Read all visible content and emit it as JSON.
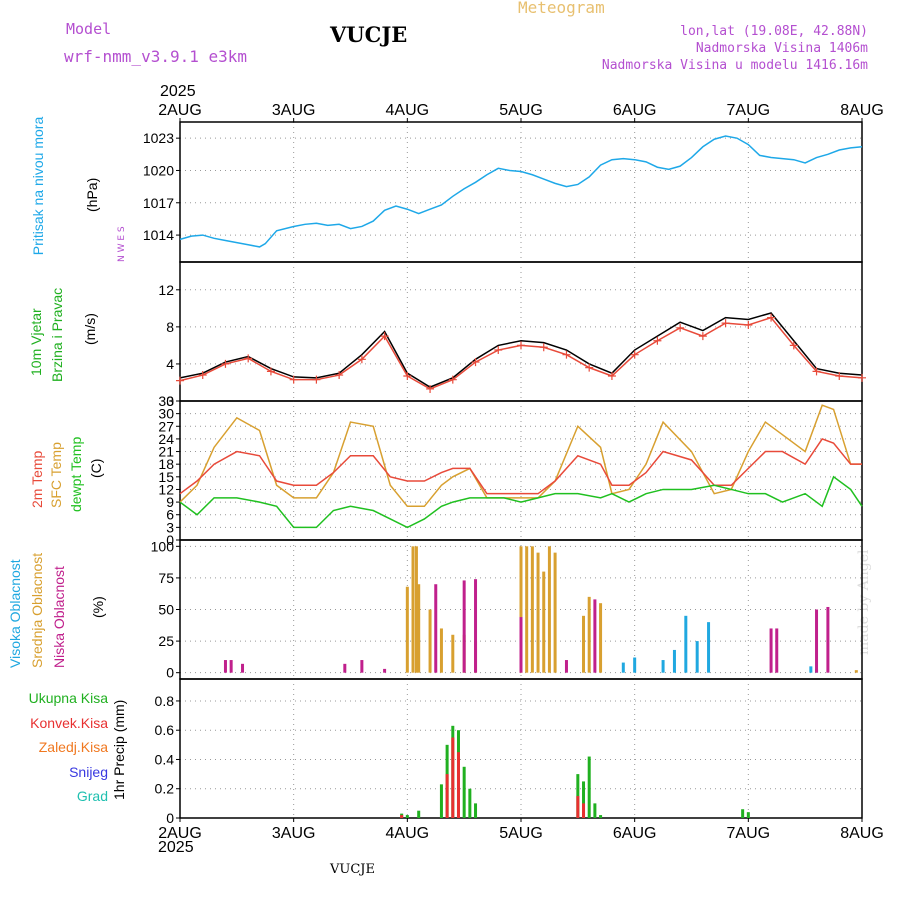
{
  "header": {
    "model_label": "Model",
    "model_name": "wrf-nmm_v3.9.1  e3km",
    "station": "VUCJE",
    "meteogram": "Meteogram",
    "lonlat": "lon,lat (19.08E, 42.88N)",
    "elevation": "Nadmorska Visina 1406m",
    "model_elevation": "Nadmorska Visina u modelu 1416.16m",
    "year_top": "2025",
    "year_bottom": "2025",
    "footer": "VUCJE",
    "credit": "made by Angel"
  },
  "colors": {
    "pressure": "#1ea8e8",
    "t2m": "#e84a3a",
    "sfc": "#d8a030",
    "dew": "#20c020",
    "high_cloud": "#20a8e0",
    "mid_cloud": "#d8a030",
    "low_cloud": "#c0208c",
    "precip_total": "#20b020",
    "precip_conv": "#e83030",
    "precip_strat": "#f07820",
    "snow": "#3838e0",
    "graupel": "#20c0b0"
  },
  "chart_data": {
    "x_ticks": [
      "2AUG",
      "3AUG",
      "4AUG",
      "5AUG",
      "6AUG",
      "7AUG",
      "8AUG"
    ],
    "panels": [
      {
        "type": "line",
        "ylabel": "(hPa)",
        "legend": [
          "Pritisak na nivou mora"
        ],
        "ylim": [
          1011.5,
          1024.5
        ],
        "yticks": [
          1014,
          1017,
          1020,
          1023
        ],
        "series": [
          {
            "name": "Pritisak na nivou mora",
            "x": [
              0,
              0.1,
              0.2,
              0.3,
              0.4,
              0.5,
              0.6,
              0.7,
              0.75,
              0.85,
              1.0,
              1.1,
              1.2,
              1.3,
              1.4,
              1.5,
              1.6,
              1.7,
              1.8,
              1.9,
              2.0,
              2.1,
              2.2,
              2.3,
              2.4,
              2.5,
              2.6,
              2.7,
              2.8,
              2.9,
              3.0,
              3.1,
              3.2,
              3.3,
              3.4,
              3.5,
              3.6,
              3.7,
              3.8,
              3.9,
              4.0,
              4.1,
              4.2,
              4.3,
              4.4,
              4.5,
              4.6,
              4.7,
              4.8,
              4.9,
              5.0,
              5.1,
              5.2,
              5.3,
              5.4,
              5.5,
              5.6,
              5.7,
              5.8,
              5.9,
              6.0
            ],
            "y": [
              1013.6,
              1013.9,
              1014.0,
              1013.7,
              1013.5,
              1013.3,
              1013.1,
              1012.9,
              1013.2,
              1014.4,
              1014.8,
              1015.0,
              1015.1,
              1014.9,
              1015.0,
              1014.6,
              1014.8,
              1015.3,
              1016.3,
              1016.7,
              1016.4,
              1016.0,
              1016.4,
              1016.8,
              1017.6,
              1018.3,
              1018.9,
              1019.6,
              1020.2,
              1020.0,
              1019.9,
              1019.6,
              1019.2,
              1018.8,
              1018.5,
              1018.7,
              1019.4,
              1020.5,
              1021.0,
              1021.1,
              1021.0,
              1020.8,
              1020.3,
              1020.1,
              1020.4,
              1021.2,
              1022.2,
              1022.9,
              1023.2,
              1023.0,
              1022.4,
              1021.4,
              1021.2,
              1021.1,
              1021.0,
              1020.7,
              1021.2,
              1021.5,
              1021.9,
              1022.1,
              1022.2
            ]
          }
        ]
      },
      {
        "type": "line",
        "ylabel": "(m/s)",
        "legend": [
          "10m Vjetar",
          "Brzina i Pravac"
        ],
        "compass": "N W E S",
        "ylim": [
          0,
          15
        ],
        "yticks": [
          0,
          4,
          8,
          12
        ],
        "series": [
          {
            "name": "Brzina i Pravac",
            "x": [
              0,
              0.2,
              0.4,
              0.6,
              0.8,
              1.0,
              1.2,
              1.4,
              1.6,
              1.8,
              2.0,
              2.2,
              2.4,
              2.6,
              2.8,
              3.0,
              3.2,
              3.4,
              3.6,
              3.8,
              4.0,
              4.2,
              4.4,
              4.6,
              4.8,
              5.0,
              5.2,
              5.4,
              5.6,
              5.8,
              6.0
            ],
            "y": [
              2.5,
              3.0,
              4.2,
              4.8,
              3.5,
              2.6,
              2.5,
              3.0,
              5.0,
              7.5,
              3.0,
              1.5,
              2.5,
              4.5,
              6.0,
              6.5,
              6.3,
              5.5,
              4.0,
              3.0,
              5.5,
              7.0,
              8.5,
              7.6,
              9.0,
              8.8,
              9.5,
              6.5,
              3.5,
              3.0,
              2.8
            ]
          },
          {
            "name": "10m Vjetar",
            "x": [
              0,
              0.2,
              0.4,
              0.6,
              0.8,
              1.0,
              1.2,
              1.4,
              1.6,
              1.8,
              2.0,
              2.2,
              2.4,
              2.6,
              2.8,
              3.0,
              3.2,
              3.4,
              3.6,
              3.8,
              4.0,
              4.2,
              4.4,
              4.6,
              4.8,
              5.0,
              5.2,
              5.4,
              5.6,
              5.8,
              6.0
            ],
            "y": [
              2.2,
              2.8,
              4.0,
              4.6,
              3.2,
              2.3,
              2.3,
              2.8,
              4.5,
              7.0,
              2.7,
              1.3,
              2.3,
              4.2,
              5.5,
              6.0,
              5.8,
              5.0,
              3.6,
              2.7,
              5.0,
              6.5,
              7.9,
              7.0,
              8.4,
              8.2,
              9.0,
              6.0,
              3.2,
              2.7,
              2.5
            ]
          }
        ]
      },
      {
        "type": "line",
        "ylabel": "(C)",
        "legend": [
          "2m Temp",
          "SFC Temp",
          "dewpt Temp"
        ],
        "ylim": [
          0,
          33
        ],
        "yticks": [
          0,
          3,
          6,
          9,
          12,
          15,
          18,
          21,
          24,
          27,
          30,
          33
        ],
        "series": [
          {
            "name": "SFC Temp",
            "x": [
              0,
              0.15,
              0.3,
              0.5,
              0.7,
              0.85,
              1.0,
              1.2,
              1.35,
              1.5,
              1.7,
              1.85,
              2.0,
              2.15,
              2.3,
              2.4,
              2.55,
              2.7,
              2.85,
              3.0,
              3.15,
              3.3,
              3.5,
              3.7,
              3.8,
              3.95,
              4.1,
              4.25,
              4.5,
              4.7,
              4.85,
              5.0,
              5.15,
              5.3,
              5.5,
              5.65,
              5.75,
              5.9,
              6.0
            ],
            "y": [
              9,
              13,
              22,
              29,
              26,
              13,
              10,
              10,
              16,
              28,
              27,
              13,
              8,
              8,
              13,
              15,
              17,
              10,
              10,
              10,
              10,
              14,
              27,
              22,
              11,
              12,
              18,
              28,
              21,
              11,
              12,
              21,
              28,
              25,
              21,
              32,
              31,
              18,
              18
            ]
          },
          {
            "name": "2m Temp",
            "x": [
              0,
              0.15,
              0.3,
              0.5,
              0.7,
              0.85,
              1.0,
              1.2,
              1.35,
              1.5,
              1.7,
              1.85,
              2.0,
              2.15,
              2.3,
              2.4,
              2.55,
              2.7,
              2.85,
              3.0,
              3.15,
              3.3,
              3.5,
              3.7,
              3.8,
              3.95,
              4.1,
              4.25,
              4.5,
              4.7,
              4.85,
              5.0,
              5.15,
              5.3,
              5.5,
              5.65,
              5.75,
              5.9,
              6.0
            ],
            "y": [
              11,
              14,
              18,
              21,
              20,
              14,
              13,
              13,
              16,
              20,
              20,
              15,
              14,
              14,
              16,
              17,
              17,
              11,
              11,
              11,
              11,
              14,
              20,
              18,
              13,
              13,
              16,
              21,
              19,
              13,
              13,
              17,
              21,
              21,
              18,
              24,
              23,
              18,
              18
            ]
          },
          {
            "name": "dewpt Temp",
            "x": [
              0,
              0.15,
              0.3,
              0.5,
              0.7,
              0.85,
              1.0,
              1.2,
              1.35,
              1.5,
              1.7,
              1.85,
              2.0,
              2.15,
              2.3,
              2.4,
              2.55,
              2.7,
              2.85,
              3.0,
              3.15,
              3.3,
              3.5,
              3.7,
              3.8,
              3.95,
              4.1,
              4.25,
              4.5,
              4.7,
              4.85,
              5.0,
              5.15,
              5.3,
              5.5,
              5.65,
              5.75,
              5.9,
              6.0
            ],
            "y": [
              9,
              6,
              10,
              10,
              9,
              8,
              3,
              3,
              7,
              8,
              7,
              5,
              3,
              5,
              8,
              9,
              10,
              10,
              10,
              9,
              10,
              11,
              11,
              10,
              11,
              9,
              11,
              12,
              12,
              13,
              12,
              11,
              11,
              9,
              11,
              8,
              15,
              12,
              8
            ]
          }
        ]
      },
      {
        "type": "bar",
        "ylabel": "(%)",
        "legend": [
          "Visoka Oblacnost",
          "Srednja Oblacnost",
          "Niska Oblacnost"
        ],
        "ylim": [
          -5,
          105
        ],
        "yticks": [
          0,
          25,
          50,
          75,
          100
        ],
        "series": [
          {
            "name": "Visoka Oblacnost",
            "x": [
              3.9,
              4.0,
              4.25,
              4.35,
              4.45,
              4.55,
              4.65,
              5.55,
              5.6
            ],
            "y": [
              8,
              12,
              10,
              18,
              45,
              25,
              40,
              5,
              3
            ]
          },
          {
            "name": "Srednja Oblacnost",
            "x": [
              2.0,
              2.05,
              2.08,
              2.1,
              2.2,
              2.3,
              2.4,
              2.5,
              2.6,
              3.0,
              3.05,
              3.1,
              3.15,
              3.2,
              3.25,
              3.3,
              3.55,
              3.6,
              3.7,
              5.95
            ],
            "y": [
              68,
              100,
              100,
              70,
              50,
              35,
              30,
              30,
              25,
              100,
              100,
              100,
              95,
              80,
              100,
              95,
              45,
              60,
              55,
              2
            ]
          },
          {
            "name": "Niska Oblacnost",
            "x": [
              0.4,
              0.45,
              0.55,
              1.45,
              1.6,
              1.8,
              2.25,
              2.5,
              2.6,
              3.0,
              3.4,
              3.65,
              5.2,
              5.25,
              5.6,
              5.7
            ],
            "y": [
              10,
              10,
              7,
              7,
              10,
              3,
              70,
              73,
              74,
              44,
              10,
              58,
              35,
              35,
              50,
              52
            ]
          }
        ]
      },
      {
        "type": "bar",
        "ylabel": "1hr Precip (mm)",
        "legend": [
          "Ukupna Kisa",
          "Konvek.Kisa",
          "Zaledj.Kisa",
          "Snijeg",
          "Grad"
        ],
        "ylim": [
          0,
          0.95
        ],
        "yticks": [
          0,
          0.2,
          0.4,
          0.6,
          0.8
        ],
        "series": [
          {
            "name": "Ukupna Kisa",
            "x": [
              1.95,
              2.0,
              2.1,
              2.3,
              2.35,
              2.4,
              2.45,
              2.5,
              2.55,
              2.6,
              3.5,
              3.55,
              3.6,
              3.65,
              3.7,
              4.95,
              5.0
            ],
            "y": [
              0.03,
              0.02,
              0.05,
              0.23,
              0.5,
              0.63,
              0.6,
              0.35,
              0.2,
              0.1,
              0.3,
              0.25,
              0.42,
              0.1,
              0.02,
              0.06,
              0.04
            ]
          },
          {
            "name": "Konvek.Kisa",
            "x": [
              1.95,
              2.35,
              2.4,
              2.45,
              3.5,
              3.55
            ],
            "y": [
              0.02,
              0.3,
              0.55,
              0.45,
              0.15,
              0.1
            ]
          }
        ]
      }
    ]
  }
}
